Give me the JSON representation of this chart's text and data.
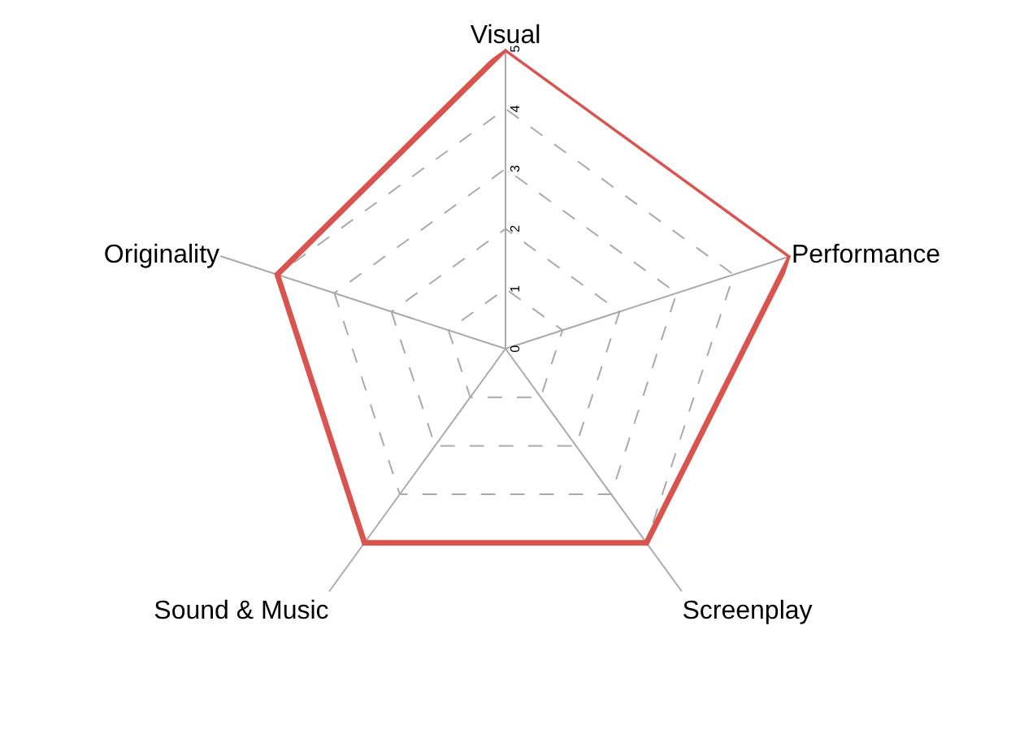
{
  "chart_data": {
    "type": "radar",
    "categories": [
      "Visual",
      "Performance",
      "Screenplay",
      "Sound & Music",
      "Originality"
    ],
    "series": [
      {
        "color": "#d9534f",
        "values": [
          5,
          5,
          4,
          4,
          4
        ]
      }
    ],
    "ylim": [
      0,
      5
    ],
    "yticks": [
      0,
      1,
      2,
      3,
      4,
      5
    ],
    "grid": true,
    "legend": false,
    "marker": "none",
    "line_style": "solid"
  }
}
